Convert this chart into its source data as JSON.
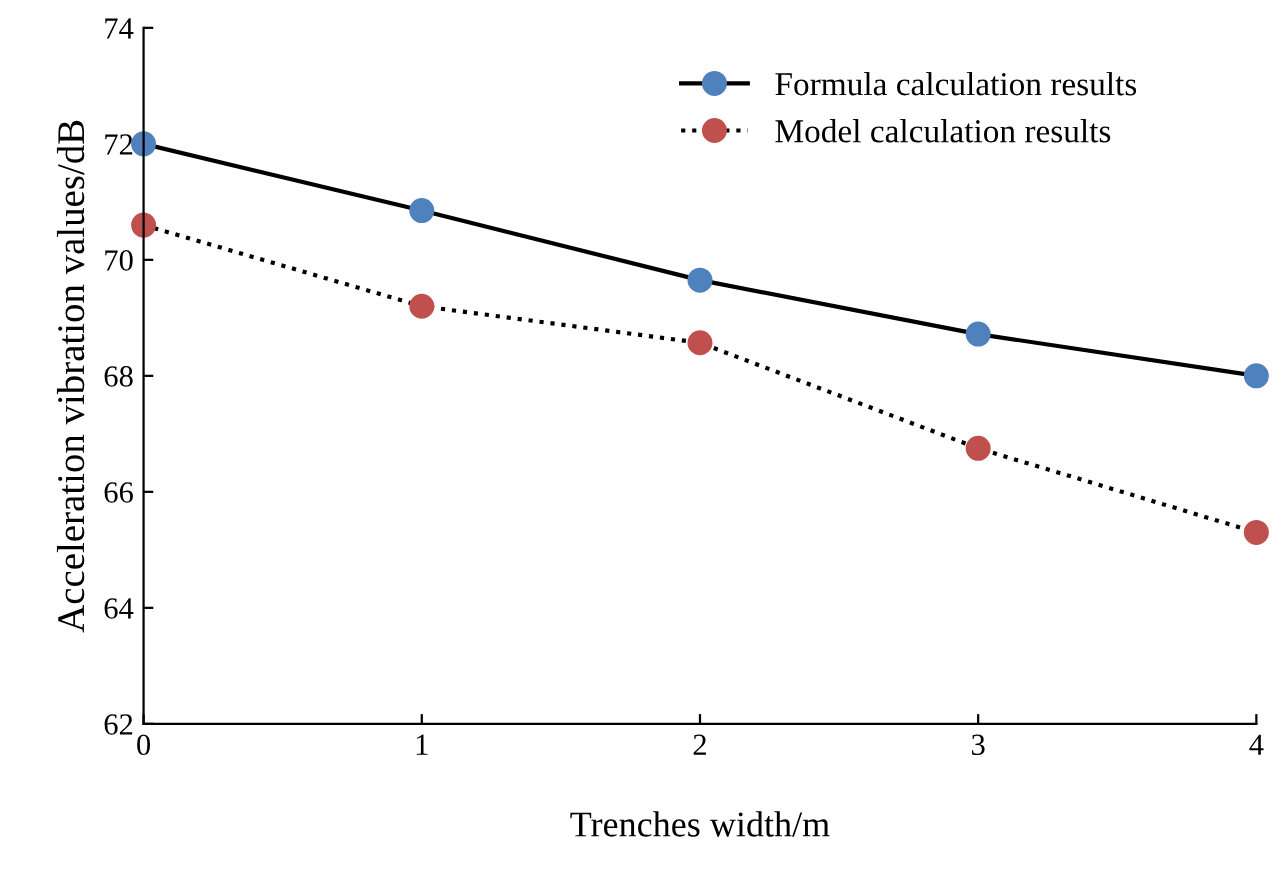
{
  "chart_data": {
    "type": "line",
    "xlabel": "Trenches width/m",
    "ylabel": "Acceleration vibration values/dB",
    "x": [
      0,
      1,
      2,
      3,
      4
    ],
    "series": [
      {
        "name": "Formula calculation results",
        "color": "#4f81bd",
        "values": [
          72.0,
          70.85,
          69.65,
          68.72,
          68.0
        ],
        "line_style": "solid"
      },
      {
        "name": "Model calculation results",
        "color": "#c0504d",
        "values": [
          70.6,
          69.2,
          68.57,
          66.75,
          65.3
        ],
        "line_style": "dotted"
      }
    ],
    "xlim": [
      0,
      4
    ],
    "xticks": [
      0,
      1,
      2,
      3,
      4
    ],
    "ylim": [
      62,
      74
    ],
    "yticks": [
      62,
      64,
      66,
      68,
      70,
      72,
      74
    ],
    "marker": "circle",
    "legend": "top right",
    "grid": false
  }
}
